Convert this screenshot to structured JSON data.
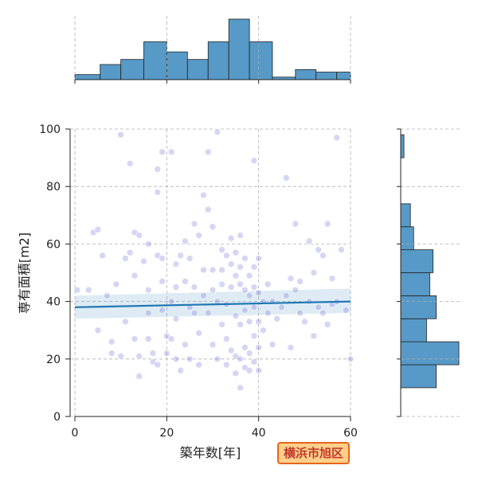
{
  "chart_data": {
    "type": "scatter",
    "title": "",
    "xlabel": "築年数[年]",
    "ylabel": "専有面積[m2]",
    "xlim": [
      0,
      60
    ],
    "ylim": [
      0,
      100
    ],
    "xticks": [
      "0",
      "20",
      "40",
      "60"
    ],
    "yticks": [
      "0",
      "20",
      "40",
      "60",
      "80",
      "100"
    ],
    "grid": true,
    "marker_color": "#6a6ad6",
    "line_color": "#1f77b4",
    "hist_color": "#5799c7",
    "regression": {
      "x": [
        0,
        60
      ],
      "y": [
        38.0,
        40.0
      ],
      "ci_low": [
        34.0,
        36.0
      ],
      "ci_high": [
        42.0,
        44.5
      ]
    },
    "top_histogram": {
      "bins": [
        0,
        5.5,
        10,
        15,
        20,
        24.5,
        29,
        33.5,
        38,
        43,
        48,
        52.5,
        57,
        60
      ],
      "counts": [
        2,
        6,
        8,
        15,
        11,
        8,
        15,
        24,
        15,
        1,
        4,
        3,
        3
      ]
    },
    "right_histogram": {
      "bins": [
        10,
        18,
        26,
        34,
        42,
        50,
        58,
        66,
        74,
        82,
        90,
        98,
        100
      ],
      "counts": [
        11,
        18,
        8,
        11,
        9,
        10,
        4,
        3,
        0,
        0,
        1,
        0
      ]
    },
    "points": [
      [
        0.5,
        44
      ],
      [
        3,
        44
      ],
      [
        4,
        64
      ],
      [
        5,
        30
      ],
      [
        5,
        65
      ],
      [
        6,
        56
      ],
      [
        7,
        42
      ],
      [
        8,
        26
      ],
      [
        8,
        22
      ],
      [
        9,
        46
      ],
      [
        10,
        21
      ],
      [
        10,
        98
      ],
      [
        11,
        55
      ],
      [
        11,
        33
      ],
      [
        12,
        88
      ],
      [
        12,
        57
      ],
      [
        13,
        64
      ],
      [
        13,
        49
      ],
      [
        13,
        27
      ],
      [
        14,
        21
      ],
      [
        14,
        63
      ],
      [
        14,
        14
      ],
      [
        15,
        54
      ],
      [
        16,
        60
      ],
      [
        16,
        44
      ],
      [
        16,
        36
      ],
      [
        16,
        27
      ],
      [
        17,
        22
      ],
      [
        17,
        19
      ],
      [
        18,
        18
      ],
      [
        18,
        78
      ],
      [
        18,
        86
      ],
      [
        18,
        56
      ],
      [
        19,
        92
      ],
      [
        19,
        55
      ],
      [
        19,
        47
      ],
      [
        19,
        37
      ],
      [
        20,
        28
      ],
      [
        20,
        22
      ],
      [
        21,
        27
      ],
      [
        21,
        92
      ],
      [
        21,
        40
      ],
      [
        22,
        53
      ],
      [
        22,
        45
      ],
      [
        22,
        34
      ],
      [
        22,
        20
      ],
      [
        23,
        16
      ],
      [
        23,
        56
      ],
      [
        24,
        47
      ],
      [
        24,
        25
      ],
      [
        24,
        61
      ],
      [
        25,
        55
      ],
      [
        25,
        38
      ],
      [
        25,
        20
      ],
      [
        26,
        67
      ],
      [
        26,
        45
      ],
      [
        26,
        36
      ],
      [
        27,
        29
      ],
      [
        27,
        18
      ],
      [
        27,
        63
      ],
      [
        28,
        77
      ],
      [
        28,
        51
      ],
      [
        28,
        42
      ],
      [
        29,
        36
      ],
      [
        29,
        92
      ],
      [
        29,
        72
      ],
      [
        30,
        66
      ],
      [
        30,
        51
      ],
      [
        30,
        44
      ],
      [
        30,
        25
      ],
      [
        31,
        40
      ],
      [
        31,
        20
      ],
      [
        31,
        99
      ],
      [
        32,
        58
      ],
      [
        32,
        51
      ],
      [
        32,
        46
      ],
      [
        32,
        32
      ],
      [
        33,
        56
      ],
      [
        33,
        39
      ],
      [
        33,
        27
      ],
      [
        33,
        18
      ],
      [
        34,
        62
      ],
      [
        34,
        53
      ],
      [
        34,
        45
      ],
      [
        34,
        23
      ],
      [
        35,
        57
      ],
      [
        35,
        49
      ],
      [
        35,
        35
      ],
      [
        35,
        21
      ],
      [
        35,
        15
      ],
      [
        36,
        63
      ],
      [
        36,
        52
      ],
      [
        36,
        46
      ],
      [
        36,
        32
      ],
      [
        36,
        20
      ],
      [
        36,
        10
      ],
      [
        37,
        55
      ],
      [
        37,
        44
      ],
      [
        37,
        37
      ],
      [
        37,
        24
      ],
      [
        37,
        17
      ],
      [
        38,
        49
      ],
      [
        38,
        42
      ],
      [
        38,
        33
      ],
      [
        38,
        22
      ],
      [
        38,
        16
      ],
      [
        39,
        89
      ],
      [
        39,
        52
      ],
      [
        39,
        45
      ],
      [
        39,
        38
      ],
      [
        39,
        28
      ],
      [
        39,
        19
      ],
      [
        40,
        55
      ],
      [
        40,
        43
      ],
      [
        40,
        33
      ],
      [
        40,
        24
      ],
      [
        40,
        16
      ],
      [
        41,
        40
      ],
      [
        41,
        30
      ],
      [
        42,
        46
      ],
      [
        42,
        36
      ],
      [
        43,
        40
      ],
      [
        43,
        25
      ],
      [
        44,
        34
      ],
      [
        45,
        38
      ],
      [
        46,
        83
      ],
      [
        46,
        42
      ],
      [
        47,
        48
      ],
      [
        47,
        24
      ],
      [
        48,
        67
      ],
      [
        48,
        44
      ],
      [
        49,
        36
      ],
      [
        49,
        47
      ],
      [
        50,
        33
      ],
      [
        51,
        40
      ],
      [
        51,
        61
      ],
      [
        52,
        50
      ],
      [
        52,
        28
      ],
      [
        53,
        58
      ],
      [
        53,
        38
      ],
      [
        54,
        56
      ],
      [
        54,
        36
      ],
      [
        55,
        67
      ],
      [
        55,
        32
      ],
      [
        56,
        48
      ],
      [
        56,
        39
      ],
      [
        57,
        97
      ],
      [
        57,
        40
      ],
      [
        58,
        58
      ],
      [
        59,
        37
      ],
      [
        60,
        20
      ]
    ]
  },
  "badge": {
    "label": "横浜市旭区"
  }
}
